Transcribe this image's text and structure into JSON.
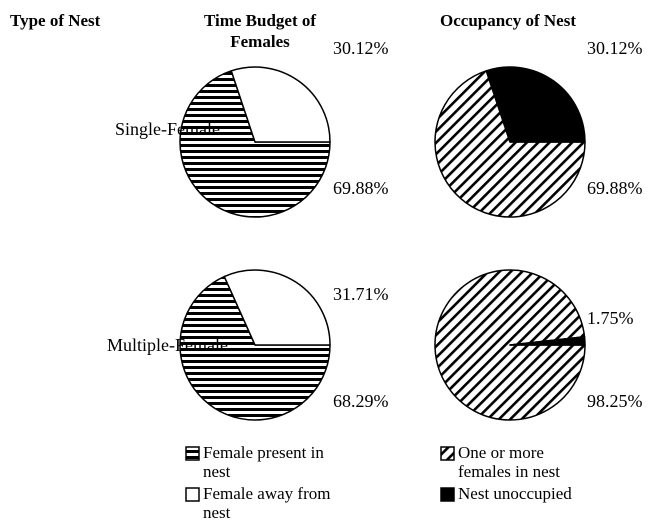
{
  "column_headers": [
    "Type of Nest",
    "Time Budget of Females",
    "Occupancy of Nest"
  ],
  "row_labels": [
    "Single-Female",
    "Multiple-Female"
  ],
  "chart_data": [
    {
      "type": "pie",
      "categories": [
        "Female present in nest",
        "Female away from nest"
      ],
      "values": [
        69.88,
        30.12
      ],
      "value_labels": [
        "69.88%",
        "30.12%"
      ],
      "colors": [
        "#000000",
        "#ffffff"
      ],
      "hatches": [
        "horizontal",
        "none"
      ]
    },
    {
      "type": "pie",
      "categories": [
        "One or more females in nest",
        "Nest unoccupied"
      ],
      "values": [
        69.88,
        30.12
      ],
      "value_labels": [
        "69.88%",
        "30.12%"
      ],
      "colors": [
        "#000000",
        "#000000"
      ],
      "hatches": [
        "diagonal",
        "none"
      ]
    },
    {
      "type": "pie",
      "categories": [
        "Female present in nest",
        "Female away from nest"
      ],
      "values": [
        68.29,
        31.71
      ],
      "value_labels": [
        "68.29%",
        "31.71%"
      ],
      "colors": [
        "#000000",
        "#ffffff"
      ],
      "hatches": [
        "horizontal",
        "none"
      ]
    },
    {
      "type": "pie",
      "categories": [
        "One or more females in nest",
        "Nest unoccupied"
      ],
      "values": [
        98.25,
        1.75
      ],
      "value_labels": [
        "98.25%",
        "1.75%"
      ],
      "colors": [
        "#000000",
        "#000000"
      ],
      "hatches": [
        "diagonal",
        "none"
      ]
    }
  ]
}
